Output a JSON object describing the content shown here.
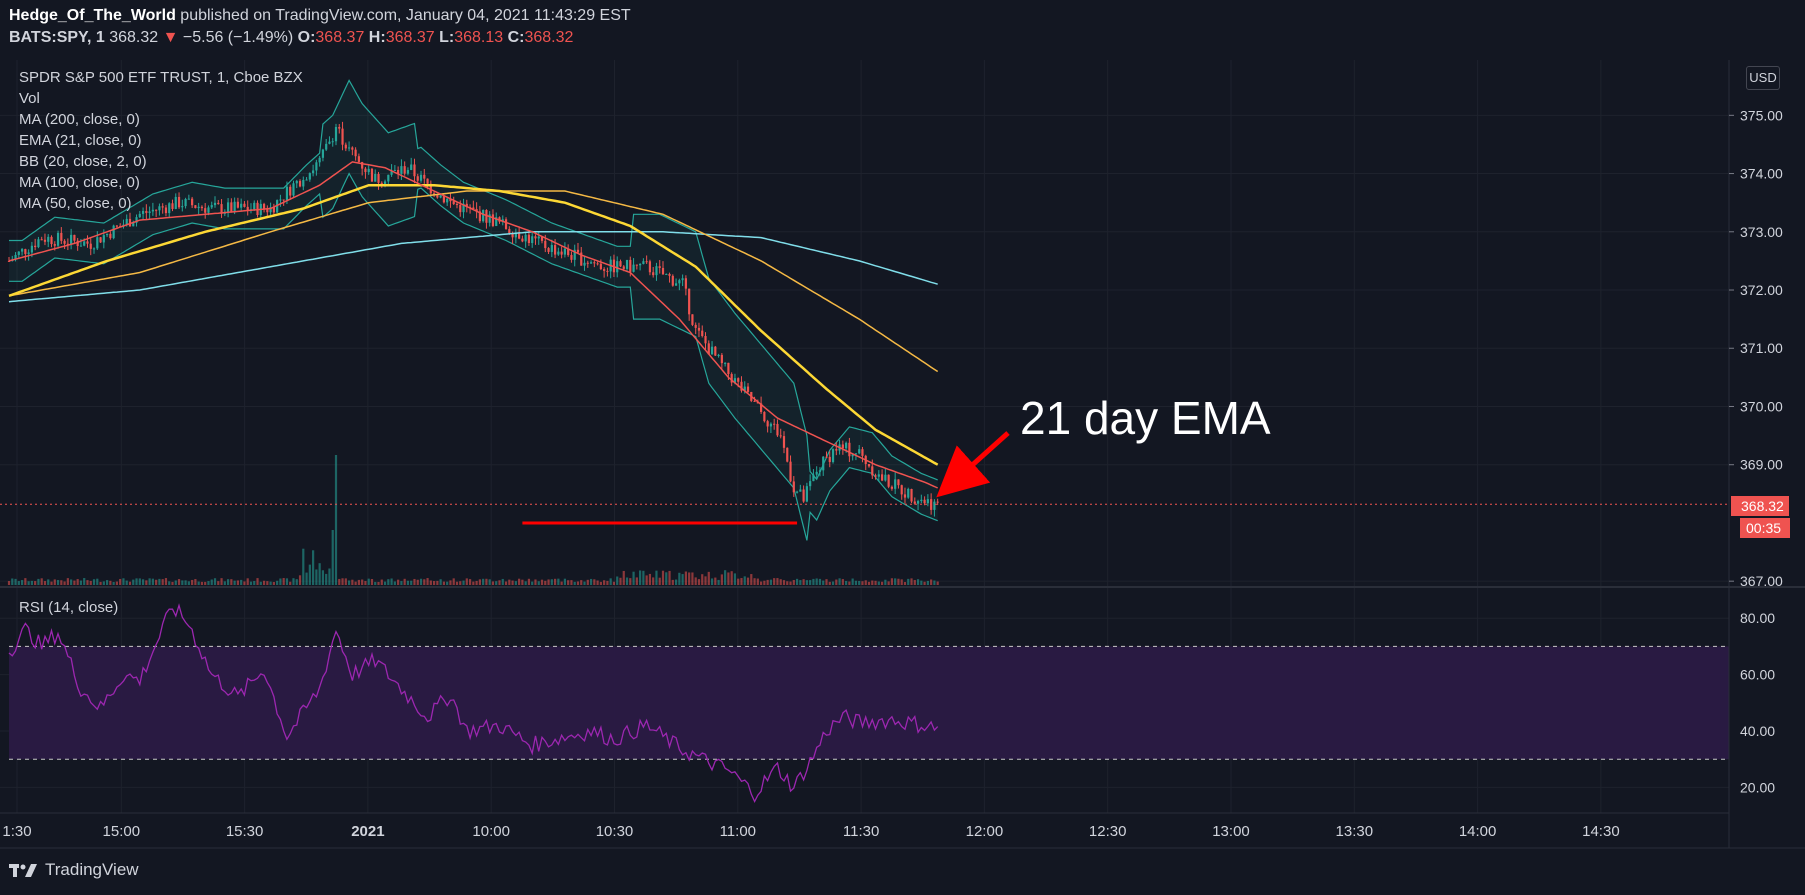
{
  "header": {
    "author": "Hedge_Of_The_World",
    "published_text": " published on TradingView.com, January 04, 2021 11:43:29 EST",
    "symbol": "BATS:SPY, 1",
    "last": "368.32",
    "change": "−5.56 (−1.49%)",
    "o_label": "O:",
    "o": "368.37",
    "h_label": "H:",
    "h": "368.37",
    "l_label": "L:",
    "l": "368.13",
    "c_label": "C:",
    "c": "368.32"
  },
  "legend": {
    "title": "SPDR S&P 500 ETF TRUST, 1, Cboe BZX",
    "items": [
      "Vol",
      "MA (200, close, 0)",
      "EMA (21, close, 0)",
      "BB (20, close, 2, 0)",
      "MA (100, close, 0)",
      "MA (50, close, 0)"
    ]
  },
  "rsi_label": "RSI (14, close)",
  "currency": "USD",
  "price_tag": "368.32",
  "countdown_tag": "00:35",
  "annotation": "21 day EMA",
  "footer": "TradingView",
  "colors": {
    "bg": "#131722",
    "up": "#26a69a",
    "down": "#ef5350",
    "ema21": "#ef5350",
    "ma50": "#fdd835",
    "ma100": "#f5b945",
    "ma200": "#80deea",
    "bb": "#26a69a",
    "rsi": "#9c27b0",
    "rsi_band": "#2a1a45",
    "annotation": "#ff0000"
  },
  "chart_data": [
    {
      "type": "candlestick",
      "title": "SPDR S&P 500 ETF TRUST, 1, Cboe BZX",
      "ylim": [
        366.9,
        375.95
      ],
      "y_ticks": [
        "375.00",
        "374.00",
        "373.00",
        "372.00",
        "371.00",
        "370.00",
        "369.00",
        "367.00"
      ],
      "x_ticks": [
        "1:30",
        "15:00",
        "15:30",
        "2021",
        "10:00",
        "10:30",
        "11:00",
        "11:30",
        "12:00",
        "12:30",
        "13:00",
        "13:30",
        "14:00",
        "14:30"
      ],
      "price_path": [
        [
          0,
          372.5
        ],
        [
          10,
          372.9
        ],
        [
          25,
          372.8
        ],
        [
          40,
          373.3
        ],
        [
          52,
          373.5
        ],
        [
          62,
          373.4
        ],
        [
          70,
          373.4
        ],
        [
          80,
          373.4
        ],
        [
          87,
          373.8
        ],
        [
          95,
          374.2
        ],
        [
          100,
          374.8
        ],
        [
          104,
          374.4
        ],
        [
          112,
          373.9
        ],
        [
          122,
          374.1
        ],
        [
          128,
          373.8
        ],
        [
          135,
          373.5
        ],
        [
          148,
          373.2
        ],
        [
          162,
          372.8
        ],
        [
          172,
          372.6
        ],
        [
          182,
          372.4
        ],
        [
          195,
          372.4
        ],
        [
          206,
          372.1
        ],
        [
          210,
          371.3
        ],
        [
          218,
          370.7
        ],
        [
          224,
          370.3
        ],
        [
          230,
          369.9
        ],
        [
          236,
          369.5
        ],
        [
          240,
          368.6
        ],
        [
          243,
          368.4
        ],
        [
          247,
          368.9
        ],
        [
          253,
          369.3
        ],
        [
          260,
          369.2
        ],
        [
          266,
          368.8
        ],
        [
          275,
          368.5
        ],
        [
          284,
          368.3
        ]
      ],
      "support_line": 368.0,
      "last_price": 368.32,
      "series": [
        {
          "name": "EMA (21, close, 0)",
          "x": [
            0,
            20,
            40,
            60,
            80,
            95,
            105,
            115,
            130,
            145,
            160,
            175,
            190,
            205,
            220,
            235,
            250,
            265,
            280,
            284
          ],
          "values": [
            372.5,
            372.8,
            373.2,
            373.3,
            373.4,
            373.8,
            374.2,
            374.1,
            373.7,
            373.3,
            373.0,
            372.6,
            372.3,
            371.5,
            370.5,
            369.8,
            369.4,
            369.0,
            368.7,
            368.6
          ]
        },
        {
          "name": "MA (50, close, 0)",
          "x": [
            0,
            30,
            60,
            90,
            110,
            130,
            150,
            170,
            190,
            210,
            230,
            250,
            265,
            284
          ],
          "values": [
            371.9,
            372.5,
            373.0,
            373.4,
            373.8,
            373.8,
            373.7,
            373.5,
            373.1,
            372.4,
            371.3,
            370.3,
            369.6,
            369.0
          ]
        },
        {
          "name": "MA (100, close, 0)",
          "x": [
            0,
            40,
            80,
            110,
            140,
            170,
            200,
            230,
            260,
            284
          ],
          "values": [
            371.9,
            372.3,
            373.0,
            373.5,
            373.7,
            373.7,
            373.3,
            372.5,
            371.5,
            370.6
          ]
        },
        {
          "name": "MA (200, close, 0)",
          "x": [
            0,
            40,
            80,
            120,
            160,
            200,
            230,
            260,
            284
          ],
          "values": [
            371.8,
            372.0,
            372.4,
            372.8,
            373.0,
            373.0,
            372.9,
            372.5,
            372.1
          ]
        }
      ]
    },
    {
      "type": "line",
      "title": "RSI (14, close)",
      "ylim": [
        12,
        90
      ],
      "y_ticks": [
        "80.00",
        "60.00",
        "40.00",
        "20.00"
      ],
      "bands": [
        30,
        70
      ],
      "x": [
        0,
        5,
        10,
        15,
        22,
        28,
        35,
        40,
        50,
        55,
        62,
        70,
        78,
        85,
        95,
        100,
        105,
        112,
        120,
        128,
        135,
        140,
        150,
        160,
        170,
        178,
        185,
        195,
        205,
        212,
        220,
        228,
        235,
        240,
        245,
        250,
        255,
        260,
        270,
        280,
        284
      ],
      "values": [
        68,
        76,
        70,
        75,
        55,
        48,
        60,
        58,
        84,
        78,
        60,
        52,
        62,
        38,
        55,
        76,
        60,
        65,
        55,
        45,
        53,
        40,
        42,
        35,
        38,
        40,
        37,
        42,
        34,
        30,
        26,
        18,
        27,
        20,
        29,
        40,
        45,
        43,
        44,
        42,
        41
      ]
    }
  ]
}
